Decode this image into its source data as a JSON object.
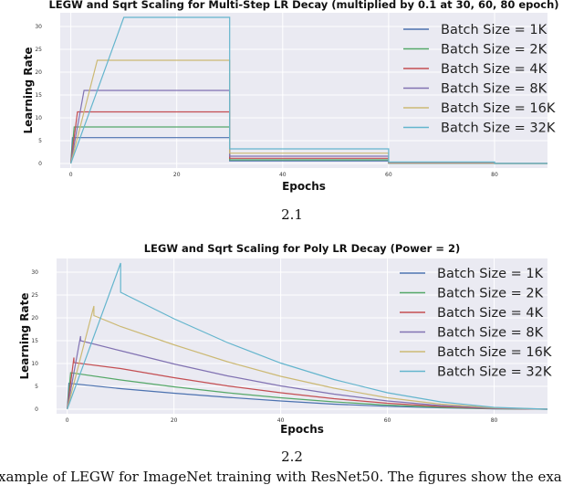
{
  "chart_data": [
    {
      "type": "line",
      "title": "LEGW and Sqrt Scaling for Multi-Step LR Decay (multiplied by 0.1 at 30, 60, 80 epoch)",
      "xlabel": "Epochs",
      "ylabel": "Learning Rate",
      "xlim": [
        -2,
        90
      ],
      "ylim": [
        -1,
        33
      ],
      "xticks": [
        0,
        20,
        40,
        60,
        80
      ],
      "yticks": [
        0,
        5,
        10,
        15,
        20,
        25,
        30
      ],
      "grid": true,
      "legend_position": "top-right",
      "series": [
        {
          "name": "Batch Size = 1K",
          "color": "#4c72b0",
          "x": [
            0,
            0.31,
            30,
            30,
            60,
            60,
            80,
            80,
            90
          ],
          "y": [
            0,
            5.66,
            5.66,
            0.566,
            0.566,
            0.0566,
            0.0566,
            0.00566,
            0.00566
          ]
        },
        {
          "name": "Batch Size = 2K",
          "color": "#55a868",
          "x": [
            0,
            0.63,
            30,
            30,
            60,
            60,
            80,
            80,
            90
          ],
          "y": [
            0,
            8,
            8,
            0.8,
            0.8,
            0.08,
            0.08,
            0.008,
            0.008
          ]
        },
        {
          "name": "Batch Size = 4K",
          "color": "#c44e52",
          "x": [
            0,
            1.25,
            30,
            30,
            60,
            60,
            80,
            80,
            90
          ],
          "y": [
            0,
            11.3,
            11.3,
            1.13,
            1.13,
            0.113,
            0.113,
            0.0113,
            0.0113
          ]
        },
        {
          "name": "Batch Size = 8K",
          "color": "#8172b2",
          "x": [
            0,
            2.5,
            30,
            30,
            60,
            60,
            80,
            80,
            90
          ],
          "y": [
            0,
            16,
            16,
            1.6,
            1.6,
            0.16,
            0.16,
            0.016,
            0.016
          ]
        },
        {
          "name": "Batch Size = 16K",
          "color": "#ccb974",
          "x": [
            0,
            5,
            30,
            30,
            60,
            60,
            80,
            80,
            90
          ],
          "y": [
            0,
            22.6,
            22.6,
            2.26,
            2.26,
            0.226,
            0.226,
            0.0226,
            0.0226
          ]
        },
        {
          "name": "Batch Size = 32K",
          "color": "#64b5cd",
          "x": [
            0,
            10,
            30,
            30,
            60,
            60,
            80,
            80,
            90
          ],
          "y": [
            0,
            32,
            32,
            3.2,
            3.2,
            0.32,
            0.32,
            0.032,
            0.032
          ]
        }
      ]
    },
    {
      "type": "line",
      "title": "LEGW and Sqrt Scaling for Poly LR Decay (Power = 2)",
      "xlabel": "Epochs",
      "ylabel": "Learning Rate",
      "xlim": [
        -2,
        90
      ],
      "ylim": [
        -1,
        33
      ],
      "xticks": [
        0,
        20,
        40,
        60,
        80
      ],
      "yticks": [
        0,
        5,
        10,
        15,
        20,
        25,
        30
      ],
      "grid": true,
      "legend_position": "top-right",
      "series": [
        {
          "name": "Batch Size = 1K",
          "color": "#4c72b0",
          "x": [
            0,
            0.31,
            10,
            20,
            30,
            40,
            50,
            60,
            70,
            80,
            90
          ],
          "y": [
            0,
            5.66,
            4.5,
            3.5,
            2.6,
            1.8,
            1.1,
            0.65,
            0.3,
            0.08,
            0
          ]
        },
        {
          "name": "Batch Size = 2K",
          "color": "#55a868",
          "x": [
            0,
            0.63,
            10,
            20,
            30,
            40,
            50,
            60,
            70,
            80,
            90
          ],
          "y": [
            0,
            8,
            6.4,
            4.9,
            3.6,
            2.5,
            1.6,
            0.9,
            0.4,
            0.1,
            0
          ]
        },
        {
          "name": "Batch Size = 4K",
          "color": "#c44e52",
          "x": [
            0,
            1.25,
            1.25,
            10,
            20,
            30,
            40,
            50,
            60,
            70,
            80,
            90
          ],
          "y": [
            0,
            11.3,
            10.2,
            8.9,
            6.9,
            5.1,
            3.6,
            2.3,
            1.3,
            0.6,
            0.15,
            0
          ]
        },
        {
          "name": "Batch Size = 8K",
          "color": "#8172b2",
          "x": [
            0,
            2.5,
            2.5,
            10,
            20,
            30,
            40,
            50,
            60,
            70,
            80,
            90
          ],
          "y": [
            0,
            16,
            15,
            12.8,
            9.9,
            7.3,
            5.1,
            3.3,
            1.8,
            0.8,
            0.2,
            0
          ]
        },
        {
          "name": "Batch Size = 16K",
          "color": "#ccb974",
          "x": [
            0,
            5,
            5,
            10,
            20,
            30,
            40,
            50,
            60,
            70,
            80,
            90
          ],
          "y": [
            0,
            22.6,
            20.5,
            18.1,
            14.1,
            10.4,
            7.2,
            4.6,
            2.5,
            1.1,
            0.3,
            0
          ]
        },
        {
          "name": "Batch Size = 32K",
          "color": "#64b5cd",
          "x": [
            0,
            10,
            10,
            20,
            30,
            40,
            50,
            60,
            70,
            80,
            90
          ],
          "y": [
            0,
            32,
            25.6,
            19.8,
            14.6,
            10.1,
            6.5,
            3.6,
            1.6,
            0.4,
            0
          ]
        }
      ]
    }
  ],
  "subfigures": [
    "2.1",
    "2.2"
  ],
  "caption": "xample of LEGW for ImageNet training with ResNet50. The figures show the exa"
}
